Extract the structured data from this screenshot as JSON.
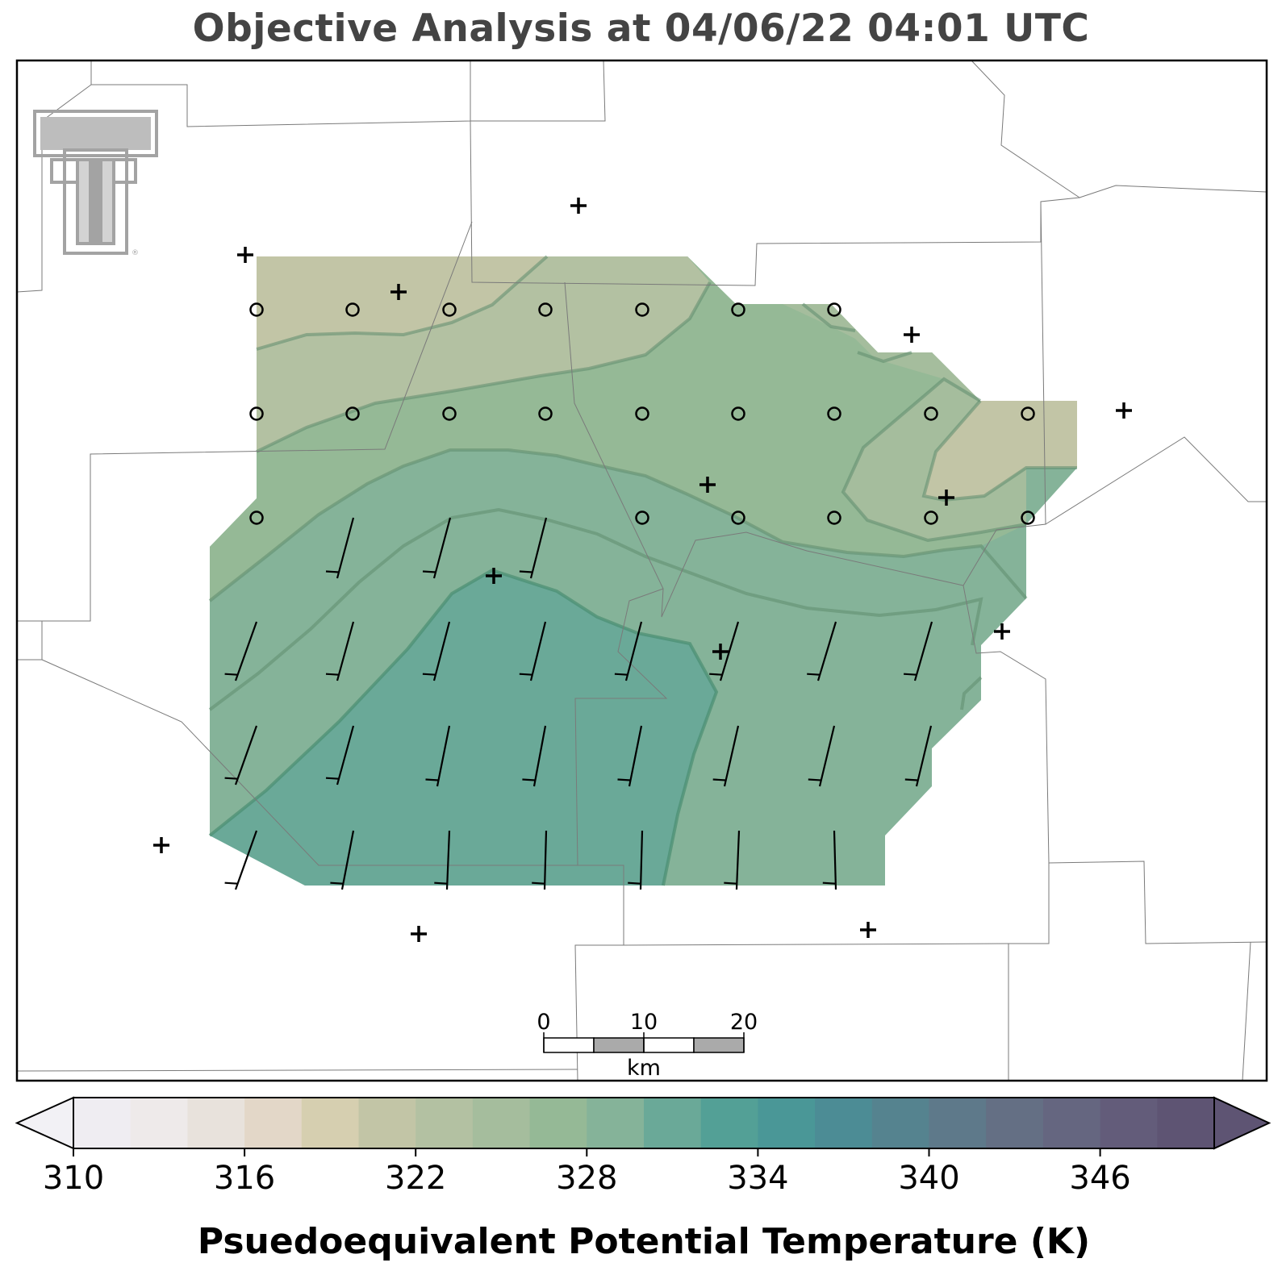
{
  "title": "Objective Analysis at 04/06/22 04:01 UTC",
  "colorbar": {
    "label": "Psuedoequivalent Potential Temperature (K)",
    "min": 310,
    "max": 350,
    "step": 2,
    "tick_values": [
      "310",
      "316",
      "322",
      "328",
      "334",
      "340",
      "346"
    ],
    "extend": "both",
    "colors": [
      "#efedf2",
      "#eeeaea",
      "#e8e2dc",
      "#e3d7c8",
      "#d6cfb0",
      "#c2c5a6",
      "#b3c1a2",
      "#a5bd9d",
      "#95b996",
      "#85b399",
      "#6aa998",
      "#53a096",
      "#4a9797",
      "#4c8c95",
      "#55838f",
      "#5e798a",
      "#646f84",
      "#656680",
      "#635c7a",
      "#5e5473"
    ],
    "under_color": "#f2f1f5",
    "over_color": "#5e5473"
  },
  "scale_bar": {
    "labels": [
      "0",
      "10",
      "20"
    ],
    "unit": "km"
  },
  "logo": {
    "name": "texas-tech-double-t-logo",
    "mark": "®"
  },
  "map_layers": {
    "county_border_color": "#7a7a7a",
    "contour_line_color": "rgba(90,140,110,0.55)",
    "stations": "plus markers",
    "grid_calm": "circle markers",
    "wind_barbs": "black barbs"
  }
}
